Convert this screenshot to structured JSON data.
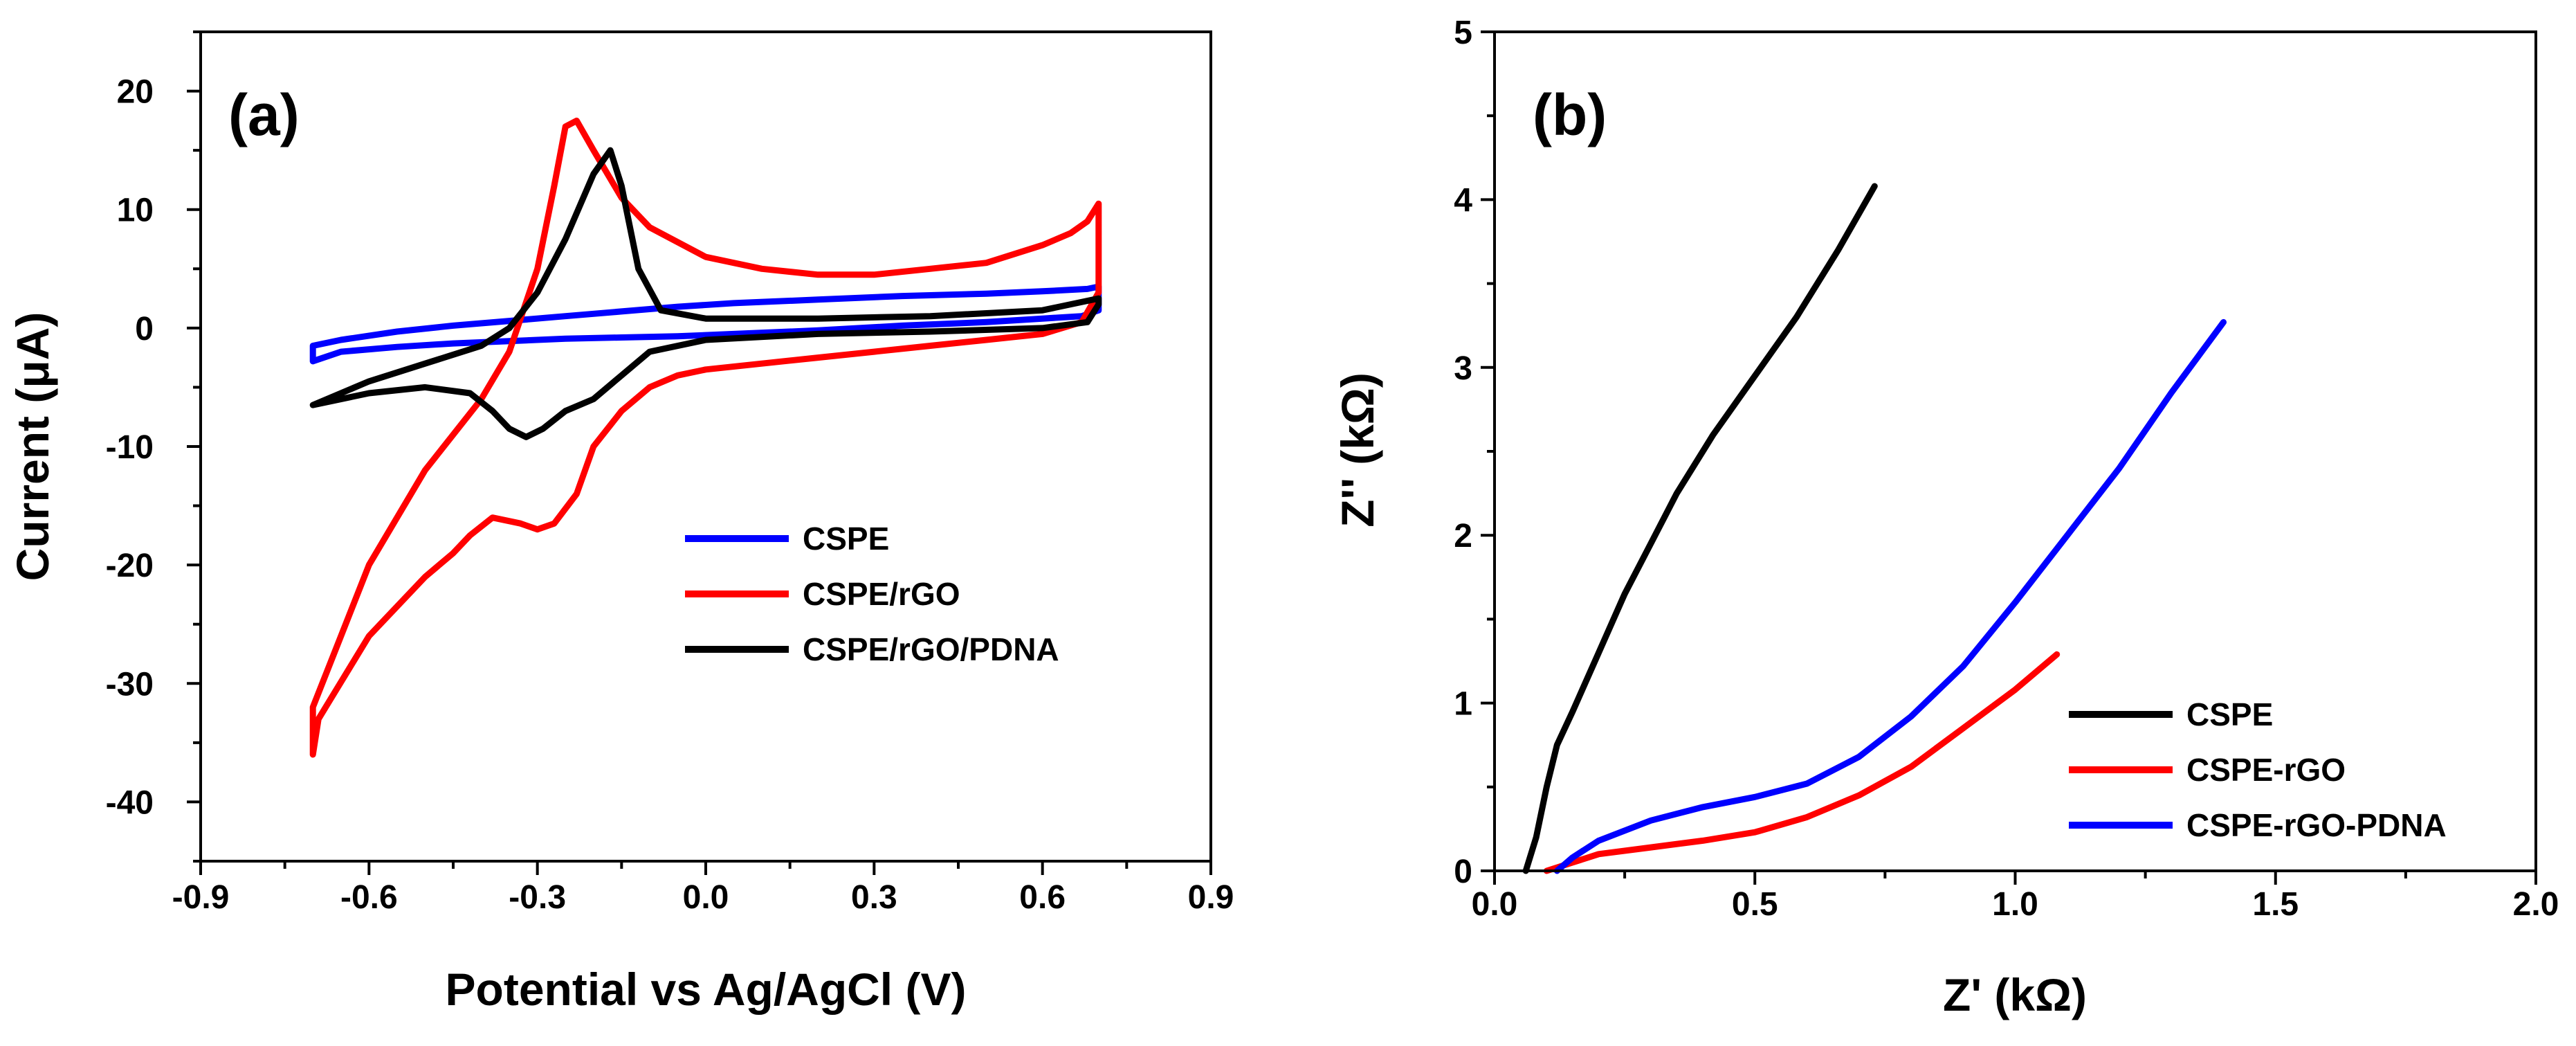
{
  "chart_data": [
    {
      "type": "line",
      "panel_label": "(a)",
      "title": "",
      "xlabel": "Potential vs Ag/AgCl (V)",
      "ylabel": "Current (μA)",
      "xlim": [
        -0.9,
        0.9
      ],
      "ylim": [
        -45,
        25
      ],
      "xticks": [
        -0.9,
        -0.6,
        -0.3,
        0.0,
        0.3,
        0.6,
        0.9
      ],
      "xtick_labels": [
        "-0.9",
        "-0.6",
        "-0.3",
        "0.0",
        "0.3",
        "0.6",
        "0.9"
      ],
      "yticks": [
        -40,
        -30,
        -20,
        -10,
        0,
        10,
        20
      ],
      "ytick_labels": [
        "-40",
        "-30",
        "-20",
        "-10",
        "0",
        "10",
        "20"
      ],
      "grid": false,
      "legend_position": "center-right",
      "series": [
        {
          "name": "CSPE",
          "color": "#0000ff",
          "x": [
            -0.7,
            -0.65,
            -0.55,
            -0.45,
            -0.35,
            -0.25,
            -0.15,
            -0.05,
            0.05,
            0.2,
            0.35,
            0.5,
            0.6,
            0.67,
            0.7,
            0.7,
            0.68,
            0.6,
            0.5,
            0.35,
            0.2,
            0.05,
            -0.05,
            -0.15,
            -0.25,
            -0.35,
            -0.45,
            -0.55,
            -0.65,
            -0.7,
            -0.7
          ],
          "y": [
            -2.8,
            -2.0,
            -1.6,
            -1.3,
            -1.1,
            -0.9,
            -0.8,
            -0.7,
            -0.5,
            -0.2,
            0.2,
            0.5,
            0.8,
            1.0,
            1.5,
            3.5,
            3.3,
            3.1,
            2.9,
            2.7,
            2.4,
            2.1,
            1.8,
            1.4,
            1.0,
            0.6,
            0.2,
            -0.3,
            -1.0,
            -1.5,
            -2.8
          ]
        },
        {
          "name": "CSPE/rGO",
          "color": "#ff0000",
          "x": [
            -0.7,
            -0.69,
            -0.6,
            -0.5,
            -0.45,
            -0.42,
            -0.38,
            -0.33,
            -0.3,
            -0.27,
            -0.23,
            -0.2,
            -0.15,
            -0.1,
            -0.05,
            0.0,
            0.1,
            0.2,
            0.3,
            0.4,
            0.5,
            0.6,
            0.67,
            0.7,
            0.7,
            0.68,
            0.65,
            0.6,
            0.5,
            0.4,
            0.3,
            0.2,
            0.1,
            0.0,
            -0.1,
            -0.15,
            -0.2,
            -0.23,
            -0.25,
            -0.27,
            -0.3,
            -0.35,
            -0.4,
            -0.5,
            -0.6,
            -0.65,
            -0.7,
            -0.7
          ],
          "y": [
            -36,
            -33,
            -26,
            -21,
            -19,
            -17.5,
            -16,
            -16.5,
            -17,
            -16.5,
            -14,
            -10,
            -7,
            -5,
            -4,
            -3.5,
            -3,
            -2.5,
            -2,
            -1.5,
            -1,
            -0.5,
            0.5,
            3,
            10.5,
            9,
            8,
            7,
            5.5,
            5,
            4.5,
            4.5,
            5,
            6,
            8.5,
            11,
            15,
            17.5,
            17,
            12,
            5,
            -2,
            -6,
            -12,
            -20,
            -26,
            -32,
            -36
          ]
        },
        {
          "name": "CSPE/rGO/PDNA",
          "color": "#000000",
          "x": [
            -0.7,
            -0.6,
            -0.5,
            -0.42,
            -0.38,
            -0.35,
            -0.32,
            -0.29,
            -0.25,
            -0.2,
            -0.15,
            -0.1,
            0.0,
            0.2,
            0.4,
            0.6,
            0.68,
            0.7,
            0.7,
            0.6,
            0.4,
            0.2,
            0.0,
            -0.08,
            -0.12,
            -0.15,
            -0.17,
            -0.2,
            -0.25,
            -0.3,
            -0.35,
            -0.4,
            -0.5,
            -0.6,
            -0.7
          ],
          "y": [
            -6.5,
            -5.5,
            -5.0,
            -5.5,
            -7.0,
            -8.5,
            -9.2,
            -8.5,
            -7.0,
            -6.0,
            -4.0,
            -2.0,
            -1.0,
            -0.5,
            -0.3,
            0.0,
            0.5,
            2.0,
            2.5,
            1.5,
            1.0,
            0.8,
            0.8,
            1.5,
            5.0,
            12.0,
            15.0,
            13.0,
            7.5,
            3.0,
            0.0,
            -1.5,
            -3.0,
            -4.5,
            -6.5
          ]
        }
      ]
    },
    {
      "type": "line",
      "panel_label": "(b)",
      "title": "",
      "xlabel": "Z' (kΩ)",
      "ylabel": "Z'' (kΩ)",
      "xlim": [
        0.0,
        2.0
      ],
      "ylim": [
        0,
        5
      ],
      "xticks": [
        0.0,
        0.5,
        1.0,
        1.5,
        2.0
      ],
      "xtick_labels": [
        "0.0",
        "0.5",
        "1.0",
        "1.5",
        "2.0"
      ],
      "yticks": [
        0,
        1,
        2,
        3,
        4,
        5
      ],
      "ytick_labels": [
        "0",
        "1",
        "2",
        "3",
        "4",
        "5"
      ],
      "grid": false,
      "legend_position": "bottom-right",
      "series": [
        {
          "name": "CSPE",
          "color": "#000000",
          "x": [
            0.06,
            0.08,
            0.1,
            0.12,
            0.15,
            0.2,
            0.25,
            0.3,
            0.35,
            0.42,
            0.5,
            0.58,
            0.66,
            0.73
          ],
          "y": [
            0.0,
            0.2,
            0.5,
            0.75,
            0.95,
            1.3,
            1.65,
            1.95,
            2.25,
            2.6,
            2.95,
            3.3,
            3.7,
            4.08
          ]
        },
        {
          "name": "CSPE-rGO",
          "color": "#ff0000",
          "x": [
            0.1,
            0.15,
            0.2,
            0.3,
            0.4,
            0.5,
            0.6,
            0.7,
            0.8,
            0.9,
            1.0,
            1.08
          ],
          "y": [
            0.0,
            0.05,
            0.1,
            0.14,
            0.18,
            0.23,
            0.32,
            0.45,
            0.62,
            0.85,
            1.08,
            1.29
          ]
        },
        {
          "name": "CSPE-rGO-PDNA",
          "color": "#0000ff",
          "x": [
            0.12,
            0.15,
            0.2,
            0.3,
            0.4,
            0.5,
            0.6,
            0.7,
            0.8,
            0.9,
            1.0,
            1.1,
            1.2,
            1.3,
            1.4
          ],
          "y": [
            0.0,
            0.08,
            0.18,
            0.3,
            0.38,
            0.44,
            0.52,
            0.68,
            0.92,
            1.22,
            1.6,
            2.0,
            2.4,
            2.85,
            3.27
          ]
        }
      ]
    }
  ]
}
